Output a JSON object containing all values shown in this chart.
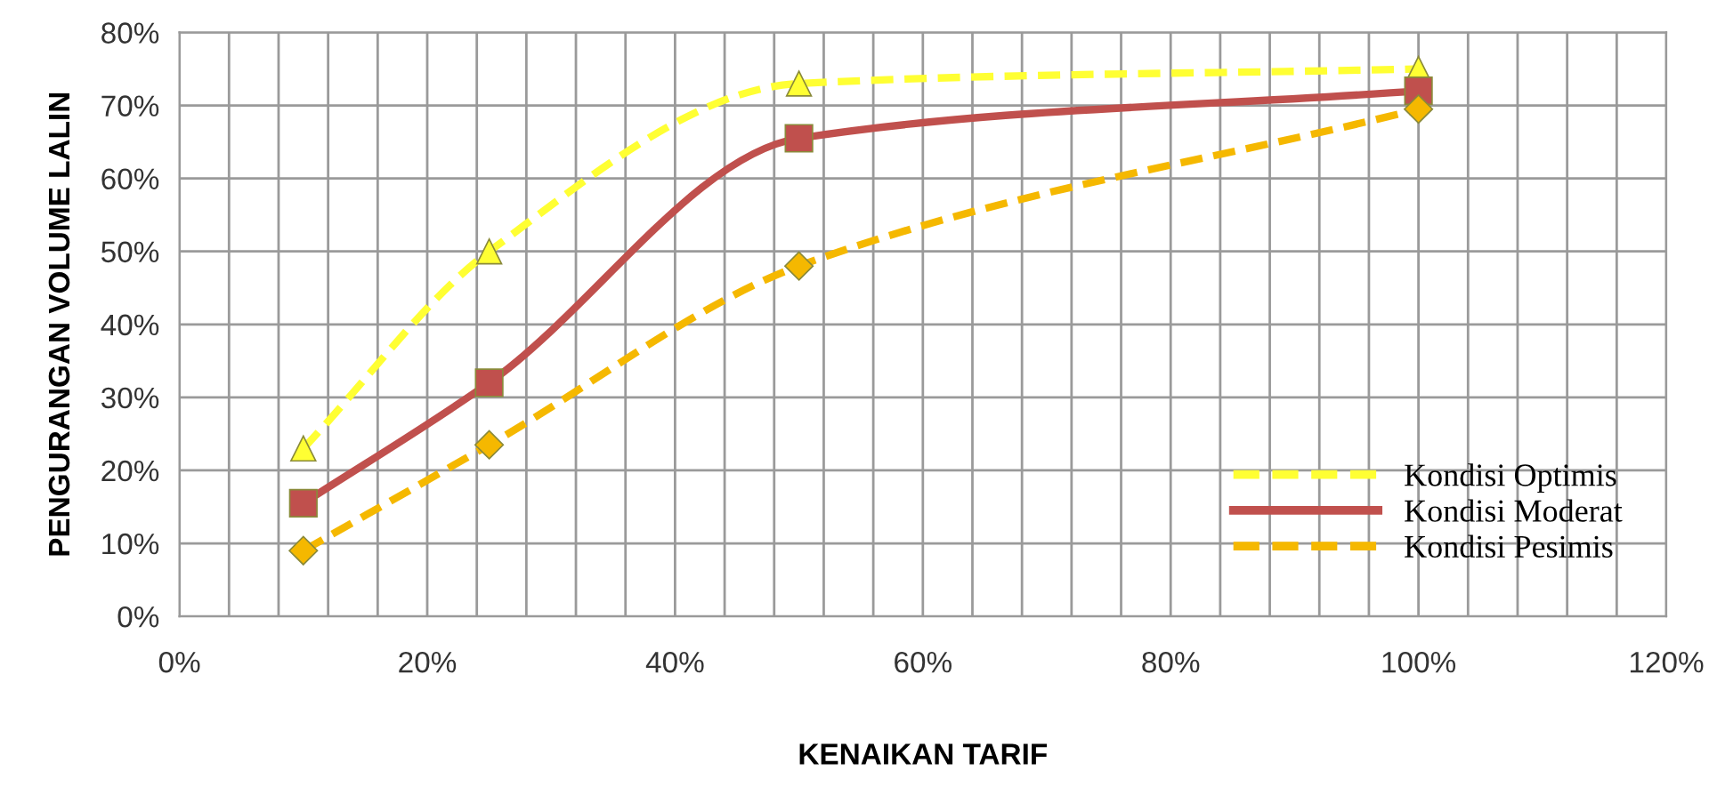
{
  "chart_data": {
    "type": "line",
    "xlabel": "KENAIKAN TARIF",
    "ylabel": "PENGURANGAN VOLUME LALIN",
    "xlim": [
      0,
      120
    ],
    "ylim": [
      0,
      80
    ],
    "xticks": [
      {
        "value": 0,
        "label": "0%"
      },
      {
        "value": 4,
        "label": null
      },
      {
        "value": 8,
        "label": null
      },
      {
        "value": 12,
        "label": null
      },
      {
        "value": 16,
        "label": null
      },
      {
        "value": 20,
        "label": "20%"
      },
      {
        "value": 24,
        "label": null
      },
      {
        "value": 28,
        "label": null
      },
      {
        "value": 32,
        "label": null
      },
      {
        "value": 36,
        "label": null
      },
      {
        "value": 40,
        "label": "40%"
      },
      {
        "value": 44,
        "label": null
      },
      {
        "value": 48,
        "label": null
      },
      {
        "value": 52,
        "label": null
      },
      {
        "value": 56,
        "label": null
      },
      {
        "value": 60,
        "label": "60%"
      },
      {
        "value": 64,
        "label": null
      },
      {
        "value": 68,
        "label": null
      },
      {
        "value": 72,
        "label": null
      },
      {
        "value": 76,
        "label": null
      },
      {
        "value": 80,
        "label": "80%"
      },
      {
        "value": 84,
        "label": null
      },
      {
        "value": 88,
        "label": null
      },
      {
        "value": 92,
        "label": null
      },
      {
        "value": 96,
        "label": null
      },
      {
        "value": 100,
        "label": "100%"
      },
      {
        "value": 104,
        "label": null
      },
      {
        "value": 108,
        "label": null
      },
      {
        "value": 112,
        "label": null
      },
      {
        "value": 116,
        "label": null
      },
      {
        "value": 120,
        "label": "120%"
      }
    ],
    "yticks": [
      {
        "value": 0,
        "label": "0%"
      },
      {
        "value": 10,
        "label": "10%"
      },
      {
        "value": 20,
        "label": "20%"
      },
      {
        "value": 30,
        "label": "30%"
      },
      {
        "value": 40,
        "label": "40%"
      },
      {
        "value": 50,
        "label": "50%"
      },
      {
        "value": 60,
        "label": "60%"
      },
      {
        "value": 70,
        "label": "70%"
      },
      {
        "value": 80,
        "label": "80%"
      }
    ],
    "grid": true,
    "legend": "bottom right",
    "x": [
      10,
      25,
      50,
      100
    ],
    "series": [
      {
        "name": "Kondisi Optimis",
        "color": "#ffff33",
        "values": [
          23,
          50,
          73,
          75
        ],
        "marker": "triangle",
        "line_style": "dashed"
      },
      {
        "name": "Kondisi Moderat",
        "color": "#c0504d",
        "values": [
          15.5,
          32,
          65.5,
          72
        ],
        "marker": "square",
        "line_style": "solid"
      },
      {
        "name": "Kondisi Pesimis",
        "color": "#f5b800",
        "values": [
          9,
          23.5,
          48,
          69.5
        ],
        "marker": "diamond",
        "line_style": "dashed"
      }
    ]
  }
}
